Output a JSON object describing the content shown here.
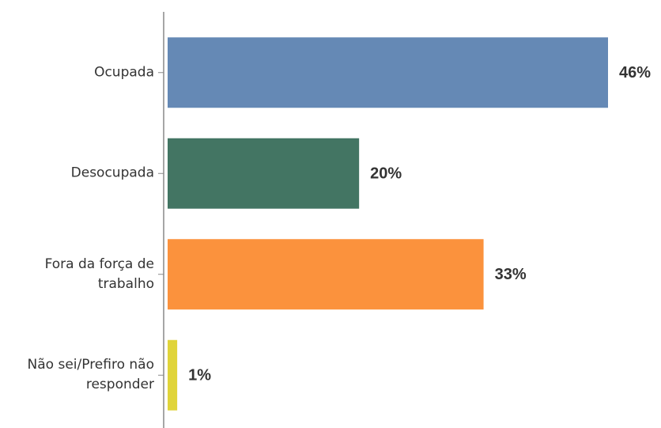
{
  "chart_data": {
    "type": "bar",
    "orientation": "horizontal",
    "categories": [
      "Ocupada",
      "Desocupada",
      "Fora da força de trabalho",
      "Não sei/Prefiro não responder"
    ],
    "values": [
      46,
      20,
      33,
      1
    ],
    "value_labels": [
      "46%",
      "20%",
      "33%",
      "1%"
    ],
    "colors": [
      "#6589b5",
      "#437563",
      "#fb923d",
      "#e0d43a"
    ]
  }
}
